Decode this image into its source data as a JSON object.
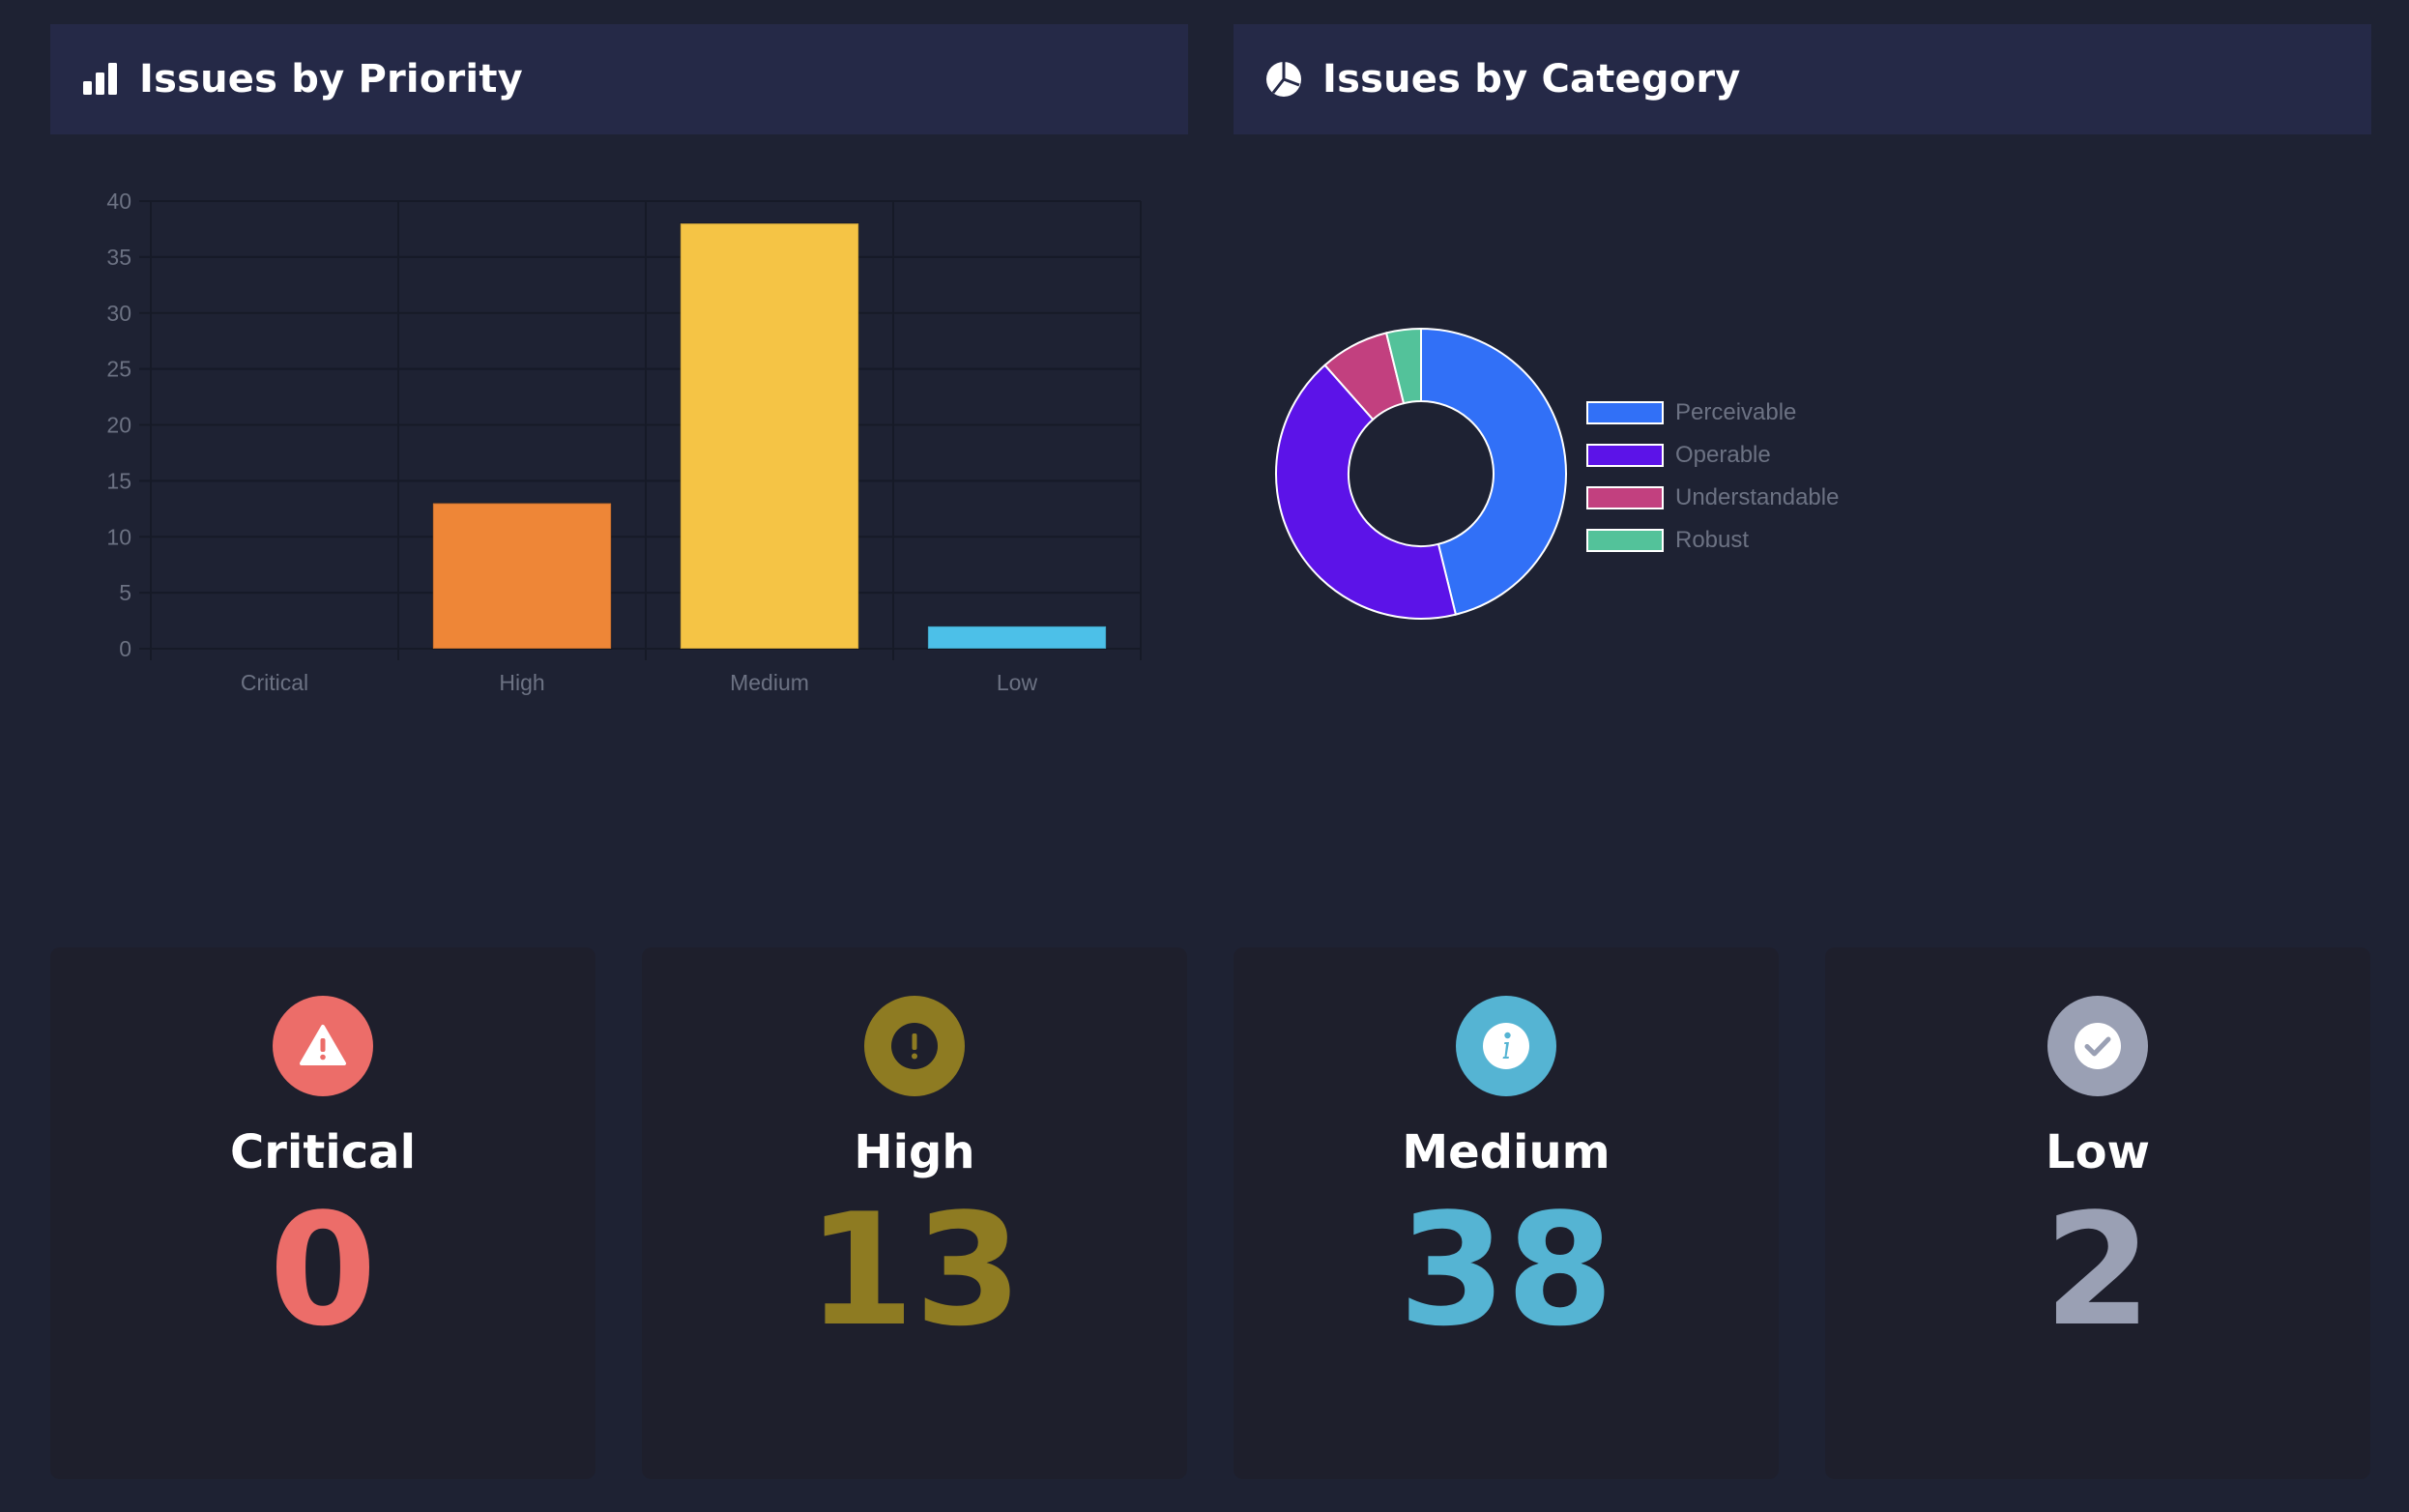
{
  "headers": {
    "priority_title": "Issues by Priority",
    "category_title": "Issues by Category",
    "priority_icon": "bar-chart-icon",
    "category_icon": "pie-chart-icon"
  },
  "chart_data": [
    {
      "type": "bar",
      "categories": [
        "Critical",
        "High",
        "Medium",
        "Low"
      ],
      "values": [
        0,
        13,
        38,
        2
      ],
      "colors": [
        "#e86a6a",
        "#ee8637",
        "#f5c445",
        "#4cc0e8"
      ],
      "ylim": [
        0,
        40
      ],
      "yticks": [
        0,
        5,
        10,
        15,
        20,
        25,
        30,
        35,
        40
      ],
      "grid": true,
      "title": "",
      "xlabel": "",
      "ylabel": ""
    },
    {
      "type": "pie",
      "variant": "doughnut",
      "labels": [
        "Perceivable",
        "Operable",
        "Understandable",
        "Robust"
      ],
      "values": [
        24,
        22,
        4,
        2
      ],
      "colors": [
        "#3170f7",
        "#5c13e8",
        "#c2407f",
        "#53c29a"
      ],
      "legend": "right"
    }
  ],
  "cards": [
    {
      "name": "Critical",
      "value": "0",
      "color": "#ec6d69",
      "icon": "warning-icon"
    },
    {
      "name": "High",
      "value": "13",
      "color": "#8e7b22",
      "icon": "exclamation-icon"
    },
    {
      "name": "Medium",
      "value": "38",
      "color": "#55b4d3",
      "icon": "info-icon"
    },
    {
      "name": "Low",
      "value": "2",
      "color": "#9aa0b4",
      "icon": "check-icon"
    }
  ]
}
